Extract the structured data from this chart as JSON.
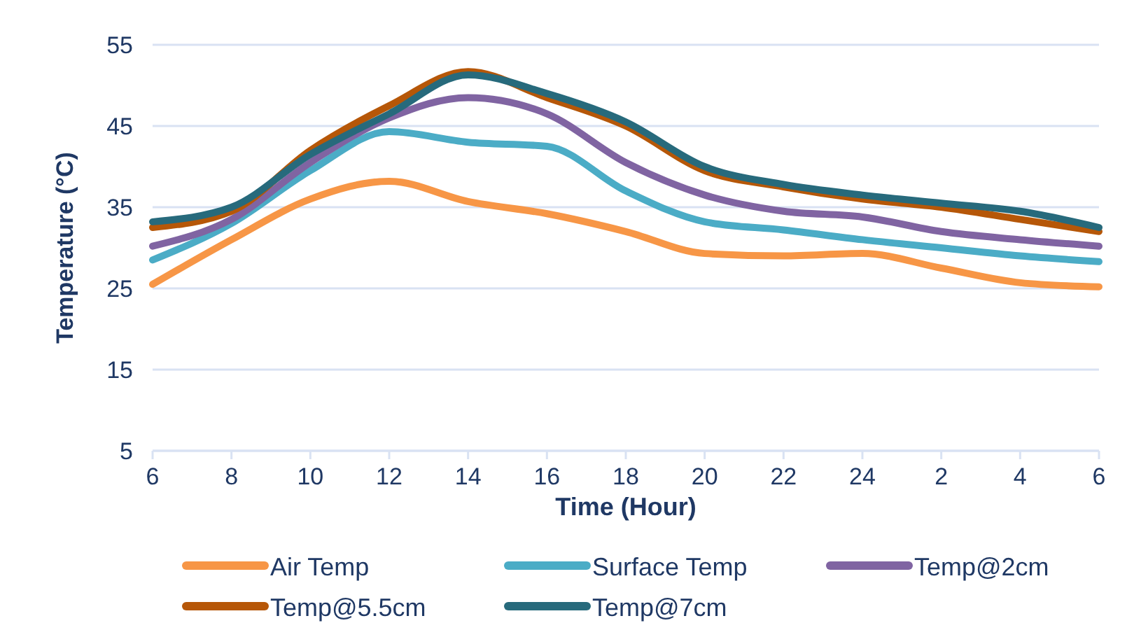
{
  "chart_data": {
    "type": "line",
    "xlabel": "Time (Hour)",
    "ylabel": "Temperature (°C)",
    "categories": [
      "6",
      "8",
      "10",
      "12",
      "14",
      "16",
      "18",
      "20",
      "22",
      "24",
      "2",
      "4",
      "6"
    ],
    "ylim": [
      5,
      55
    ],
    "yticks": [
      5,
      15,
      25,
      35,
      45,
      55
    ],
    "grid": "y",
    "legend": "bottom",
    "marker": "none",
    "line_style": "solid",
    "series": [
      {
        "name": "Air Temp",
        "color": "#f79646",
        "values": [
          25.5,
          31,
          36,
          38.2,
          35.7,
          34.2,
          32,
          29.3,
          29,
          29.3,
          27.5,
          25.7,
          25.2
        ]
      },
      {
        "name": "Surface Temp",
        "color": "#4bacc6",
        "values": [
          28.5,
          33,
          39.5,
          44.3,
          43,
          42.5,
          37,
          33.2,
          32.2,
          31,
          30,
          29,
          28.3
        ]
      },
      {
        "name": "Temp@2cm",
        "color": "#8064a2",
        "values": [
          30.2,
          33.5,
          40.5,
          46,
          48.5,
          46.5,
          40.5,
          36.5,
          34.5,
          33.8,
          32,
          31,
          30.2
        ]
      },
      {
        "name": "Temp@5.5cm",
        "color": "#b65708",
        "values": [
          32.5,
          34.5,
          42,
          47.5,
          51.7,
          48.5,
          45,
          39.5,
          37.5,
          36,
          35,
          33.5,
          32
        ]
      },
      {
        "name": "Temp@7cm",
        "color": "#276a7c",
        "values": [
          33.2,
          35,
          41.5,
          46.5,
          51.3,
          49,
          45.5,
          40,
          37.8,
          36.5,
          35.5,
          34.5,
          32.5
        ]
      }
    ]
  }
}
